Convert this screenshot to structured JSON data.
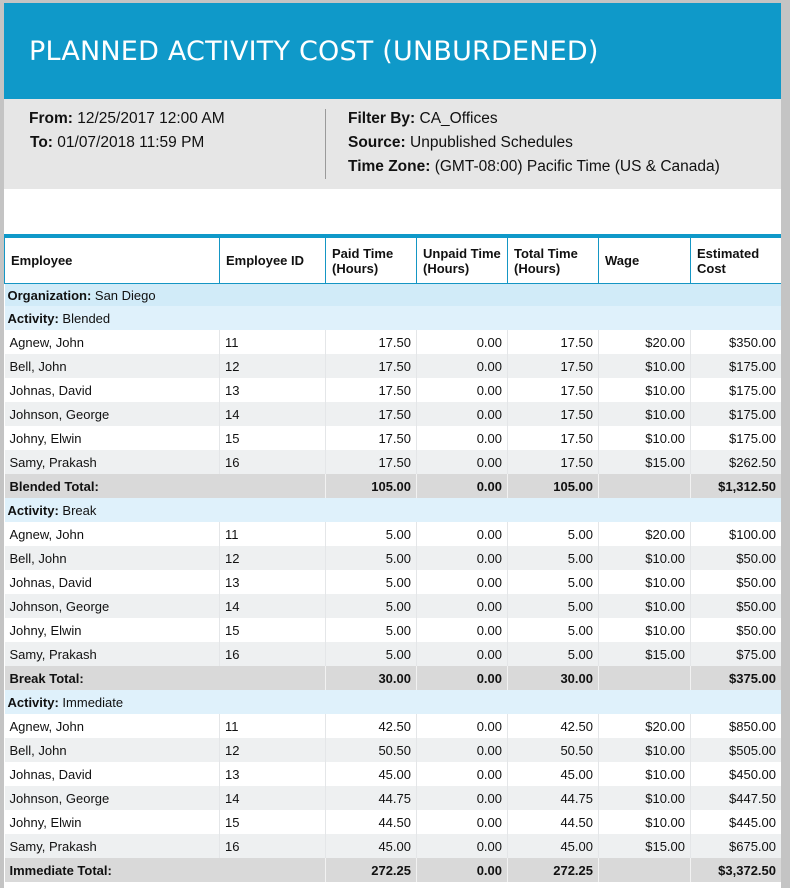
{
  "header": {
    "title": "PLANNED ACTIVITY COST (UNBURDENED)"
  },
  "meta": {
    "from_label": "From:",
    "from_value": "12/25/2017 12:00 AM",
    "to_label": "To:",
    "to_value": "01/07/2018 11:59 PM",
    "filter_label": "Filter By:",
    "filter_value": "CA_Offices",
    "source_label": "Source:",
    "source_value": "Unpublished Schedules",
    "timezone_label": "Time Zone:",
    "timezone_value": "(GMT-08:00) Pacific Time (US & Canada)"
  },
  "table": {
    "columns": {
      "employee": "Employee",
      "employee_id": "Employee ID",
      "paid_1": "Paid Time",
      "paid_2": "(Hours)",
      "unpaid_1": "Unpaid Time",
      "unpaid_2": "(Hours)",
      "total_1": "Total Time",
      "total_2": "(Hours)",
      "wage": "Wage",
      "cost_1": "Estimated",
      "cost_2": "Cost"
    },
    "organization_label": "Organization:",
    "organization": "San Diego",
    "activity_label": "Activity:",
    "activities": [
      {
        "name": "Blended",
        "rows": [
          {
            "employee": "Agnew, John",
            "id": "11",
            "paid": "17.50",
            "unpaid": "0.00",
            "total": "17.50",
            "wage": "$20.00",
            "cost": "$350.00"
          },
          {
            "employee": "Bell, John",
            "id": "12",
            "paid": "17.50",
            "unpaid": "0.00",
            "total": "17.50",
            "wage": "$10.00",
            "cost": "$175.00"
          },
          {
            "employee": "Johnas, David",
            "id": "13",
            "paid": "17.50",
            "unpaid": "0.00",
            "total": "17.50",
            "wage": "$10.00",
            "cost": "$175.00"
          },
          {
            "employee": "Johnson, George",
            "id": "14",
            "paid": "17.50",
            "unpaid": "0.00",
            "total": "17.50",
            "wage": "$10.00",
            "cost": "$175.00"
          },
          {
            "employee": "Johny, Elwin",
            "id": "15",
            "paid": "17.50",
            "unpaid": "0.00",
            "total": "17.50",
            "wage": "$10.00",
            "cost": "$175.00"
          },
          {
            "employee": "Samy, Prakash",
            "id": "16",
            "paid": "17.50",
            "unpaid": "0.00",
            "total": "17.50",
            "wage": "$15.00",
            "cost": "$262.50"
          }
        ],
        "total": {
          "label": "Blended Total:",
          "paid": "105.00",
          "unpaid": "0.00",
          "total": "105.00",
          "wage": "",
          "cost": "$1,312.50"
        }
      },
      {
        "name": "Break",
        "rows": [
          {
            "employee": "Agnew, John",
            "id": "11",
            "paid": "5.00",
            "unpaid": "0.00",
            "total": "5.00",
            "wage": "$20.00",
            "cost": "$100.00"
          },
          {
            "employee": "Bell, John",
            "id": "12",
            "paid": "5.00",
            "unpaid": "0.00",
            "total": "5.00",
            "wage": "$10.00",
            "cost": "$50.00"
          },
          {
            "employee": "Johnas, David",
            "id": "13",
            "paid": "5.00",
            "unpaid": "0.00",
            "total": "5.00",
            "wage": "$10.00",
            "cost": "$50.00"
          },
          {
            "employee": "Johnson, George",
            "id": "14",
            "paid": "5.00",
            "unpaid": "0.00",
            "total": "5.00",
            "wage": "$10.00",
            "cost": "$50.00"
          },
          {
            "employee": "Johny, Elwin",
            "id": "15",
            "paid": "5.00",
            "unpaid": "0.00",
            "total": "5.00",
            "wage": "$10.00",
            "cost": "$50.00"
          },
          {
            "employee": "Samy, Prakash",
            "id": "16",
            "paid": "5.00",
            "unpaid": "0.00",
            "total": "5.00",
            "wage": "$15.00",
            "cost": "$75.00"
          }
        ],
        "total": {
          "label": "Break Total:",
          "paid": "30.00",
          "unpaid": "0.00",
          "total": "30.00",
          "wage": "",
          "cost": "$375.00"
        }
      },
      {
        "name": "Immediate",
        "rows": [
          {
            "employee": "Agnew, John",
            "id": "11",
            "paid": "42.50",
            "unpaid": "0.00",
            "total": "42.50",
            "wage": "$20.00",
            "cost": "$850.00"
          },
          {
            "employee": "Bell, John",
            "id": "12",
            "paid": "50.50",
            "unpaid": "0.00",
            "total": "50.50",
            "wage": "$10.00",
            "cost": "$505.00"
          },
          {
            "employee": "Johnas, David",
            "id": "13",
            "paid": "45.00",
            "unpaid": "0.00",
            "total": "45.00",
            "wage": "$10.00",
            "cost": "$450.00"
          },
          {
            "employee": "Johnson, George",
            "id": "14",
            "paid": "44.75",
            "unpaid": "0.00",
            "total": "44.75",
            "wage": "$10.00",
            "cost": "$447.50"
          },
          {
            "employee": "Johny, Elwin",
            "id": "15",
            "paid": "44.50",
            "unpaid": "0.00",
            "total": "44.50",
            "wage": "$10.00",
            "cost": "$445.00"
          },
          {
            "employee": "Samy, Prakash",
            "id": "16",
            "paid": "45.00",
            "unpaid": "0.00",
            "total": "45.00",
            "wage": "$15.00",
            "cost": "$675.00"
          }
        ],
        "total": {
          "label": "Immediate Total:",
          "paid": "272.25",
          "unpaid": "0.00",
          "total": "272.25",
          "wage": "",
          "cost": "$3,372.50"
        }
      }
    ]
  },
  "colors": {
    "banner": "#0f99c9",
    "meta_bg": "#e6e6e6",
    "org_row": "#d1ebf8",
    "activity_row": "#dff1fb",
    "alt_row": "#eef0f1",
    "total_row": "#d9d9d9"
  }
}
